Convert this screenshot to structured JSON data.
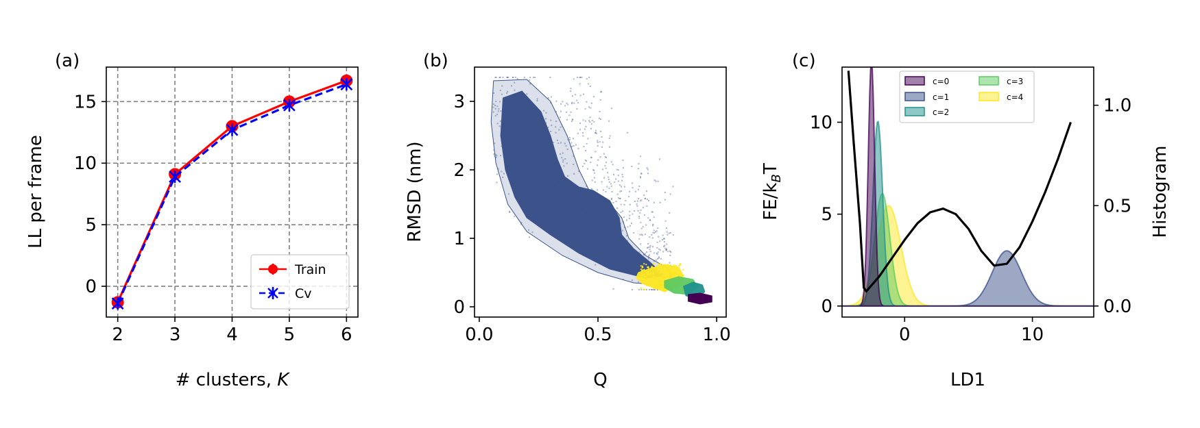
{
  "chart_data": [
    {
      "type": "line",
      "panel_label": "(a)",
      "xlabel": "# clusters, ",
      "xlabel_italic": "K",
      "ylabel": "LL per frame",
      "xlim": [
        1.8,
        6.2
      ],
      "ylim": [
        -2.5,
        17.8
      ],
      "xticks": [
        2,
        3,
        4,
        5,
        6
      ],
      "yticks": [
        0,
        5,
        10,
        15
      ],
      "grid": true,
      "legend_position": "lower-right",
      "x": [
        2,
        3,
        4,
        5,
        6
      ],
      "series": [
        {
          "name": "Train",
          "values": [
            -1.3,
            9.1,
            13.0,
            15.0,
            16.7
          ],
          "color": "#ff0000",
          "marker": "circle",
          "style": "solid"
        },
        {
          "name": "Cv",
          "values": [
            -1.4,
            8.9,
            12.7,
            14.7,
            16.4
          ],
          "color": "#0000ff",
          "marker": "x",
          "style": "dashed"
        }
      ]
    },
    {
      "type": "scatter",
      "panel_label": "(b)",
      "xlabel": "Q",
      "ylabel": "RMSD (nm)",
      "xlim": [
        -0.02,
        1.04
      ],
      "ylim": [
        -0.15,
        3.5
      ],
      "xticks": [
        0.0,
        0.5,
        1.0
      ],
      "xtick_labels": [
        "0.0",
        "0.5",
        "1.0"
      ],
      "yticks": [
        0,
        1,
        2,
        3
      ],
      "grid": false,
      "clusters": [
        {
          "name": "c=1",
          "color": "#3b528b",
          "region": "Q 0.1–0.8, RMSD 0.3–3.3"
        },
        {
          "name": "c=4",
          "color": "#fde725",
          "region": "Q 0.7–0.85, RMSD 0.2–0.6"
        },
        {
          "name": "c=3",
          "color": "#5ec962",
          "region": "Q 0.78–0.9, RMSD 0.15–0.45"
        },
        {
          "name": "c=2",
          "color": "#21918c",
          "region": "Q 0.85–0.95, RMSD 0.1–0.35"
        },
        {
          "name": "c=0",
          "color": "#440154",
          "region": "Q 0.88–0.98, RMSD 0.05–0.2"
        }
      ]
    },
    {
      "type": "area",
      "panel_label": "(c)",
      "xlabel": "LD1",
      "ylabel": "FE/k",
      "ylabel_sub": "B",
      "ylabel_suffix": "T",
      "y2label": "Histogram",
      "xlim": [
        -4.9,
        14.8
      ],
      "ylim": [
        -0.6,
        13.0
      ],
      "y2lim": [
        -0.055,
        1.19
      ],
      "xticks": [
        0,
        10
      ],
      "yticks": [
        0,
        5,
        10
      ],
      "y2ticks": [
        0.0,
        0.5,
        1.0
      ],
      "y2tick_labels": [
        "0.0",
        "0.5",
        "1.0"
      ],
      "grid": false,
      "legend_position": "top-center",
      "free_energy": {
        "color": "#000000",
        "x": [
          -4.4,
          -4.0,
          -3.5,
          -3.2,
          -3.0,
          -2.5,
          -2.0,
          -1.0,
          0.0,
          1.0,
          2.0,
          3.0,
          4.0,
          5.0,
          6.0,
          7.0,
          8.0,
          9.0,
          10.0,
          11.0,
          12.0,
          13.0
        ],
        "y": [
          12.8,
          9.0,
          4.5,
          1.0,
          0.8,
          1.2,
          1.6,
          2.6,
          3.6,
          4.5,
          5.1,
          5.3,
          5.0,
          4.2,
          3.0,
          2.2,
          2.3,
          3.2,
          4.6,
          6.2,
          8.0,
          10.0
        ]
      },
      "histograms": [
        {
          "name": "c=0",
          "color": "#440154",
          "center": -2.6,
          "width": 0.25,
          "peak": 1.22
        },
        {
          "name": "c=1",
          "color": "#3b528b",
          "center": 8.0,
          "width": 1.15,
          "peak": 0.275
        },
        {
          "name": "c=2",
          "color": "#21918c",
          "center": -2.1,
          "width": 0.38,
          "peak": 0.92
        },
        {
          "name": "c=3",
          "color": "#5ec962",
          "center": -1.75,
          "width": 0.6,
          "peak": 0.56
        },
        {
          "name": "c=4",
          "color": "#fde725",
          "center": -1.25,
          "width": 0.95,
          "peak": 0.5
        }
      ]
    }
  ]
}
